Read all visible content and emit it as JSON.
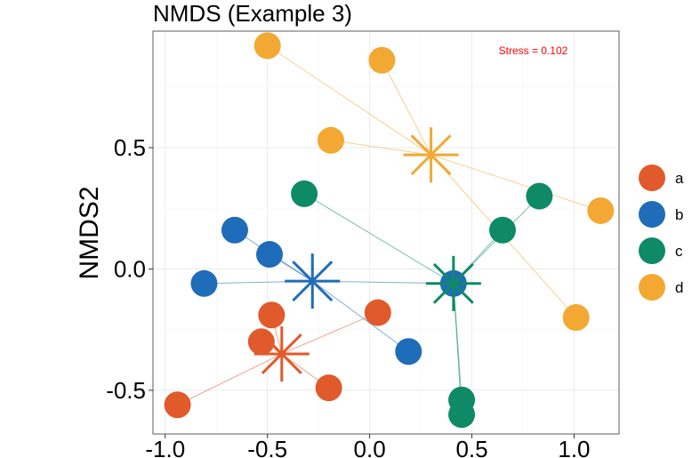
{
  "chart_data": {
    "type": "scatter",
    "title": "NMDS (Example 3)",
    "xlabel": "",
    "ylabel": "NMDS2",
    "xlim": [
      -1.06,
      1.22
    ],
    "ylim": [
      -0.68,
      0.98
    ],
    "xticks": [
      -1.0,
      -0.5,
      0.0,
      0.5,
      1.0
    ],
    "xtick_labels": [
      "-1.0",
      "-0.5",
      "0.0",
      "0.5",
      "1.0"
    ],
    "yticks": [
      -0.5,
      0.0,
      0.5
    ],
    "ytick_labels": [
      "-0.5",
      "0.0",
      "0.5"
    ],
    "grid": true,
    "legend_position": "right",
    "annotation": {
      "text": "Stress = 0.102",
      "x": 0.8,
      "y": 0.9,
      "color": "#ff0000"
    },
    "series": [
      {
        "name": "a",
        "color": "#e05a2b",
        "centroid": {
          "x": -0.43,
          "y": -0.35
        },
        "points": [
          {
            "x": -0.94,
            "y": -0.56
          },
          {
            "x": -0.48,
            "y": -0.19
          },
          {
            "x": -0.53,
            "y": -0.3
          },
          {
            "x": -0.2,
            "y": -0.49
          },
          {
            "x": 0.04,
            "y": -0.18
          }
        ]
      },
      {
        "name": "b",
        "color": "#1f6cb8",
        "centroid": {
          "x": -0.28,
          "y": -0.05
        },
        "points": [
          {
            "x": -0.81,
            "y": -0.06
          },
          {
            "x": -0.66,
            "y": 0.16
          },
          {
            "x": -0.49,
            "y": 0.06
          },
          {
            "x": 0.19,
            "y": -0.34
          },
          {
            "x": 0.41,
            "y": -0.06
          }
        ]
      },
      {
        "name": "c",
        "color": "#0e8a66",
        "centroid": {
          "x": 0.41,
          "y": -0.06
        },
        "points": [
          {
            "x": -0.32,
            "y": 0.31
          },
          {
            "x": 0.65,
            "y": 0.16
          },
          {
            "x": 0.83,
            "y": 0.3
          },
          {
            "x": 0.45,
            "y": -0.54
          },
          {
            "x": 0.45,
            "y": -0.6
          }
        ]
      },
      {
        "name": "d",
        "color": "#f2a833",
        "centroid": {
          "x": 0.3,
          "y": 0.47
        },
        "points": [
          {
            "x": -0.5,
            "y": 0.92
          },
          {
            "x": 0.06,
            "y": 0.86
          },
          {
            "x": -0.19,
            "y": 0.53
          },
          {
            "x": 1.13,
            "y": 0.24
          },
          {
            "x": 1.01,
            "y": -0.2
          }
        ]
      }
    ]
  }
}
